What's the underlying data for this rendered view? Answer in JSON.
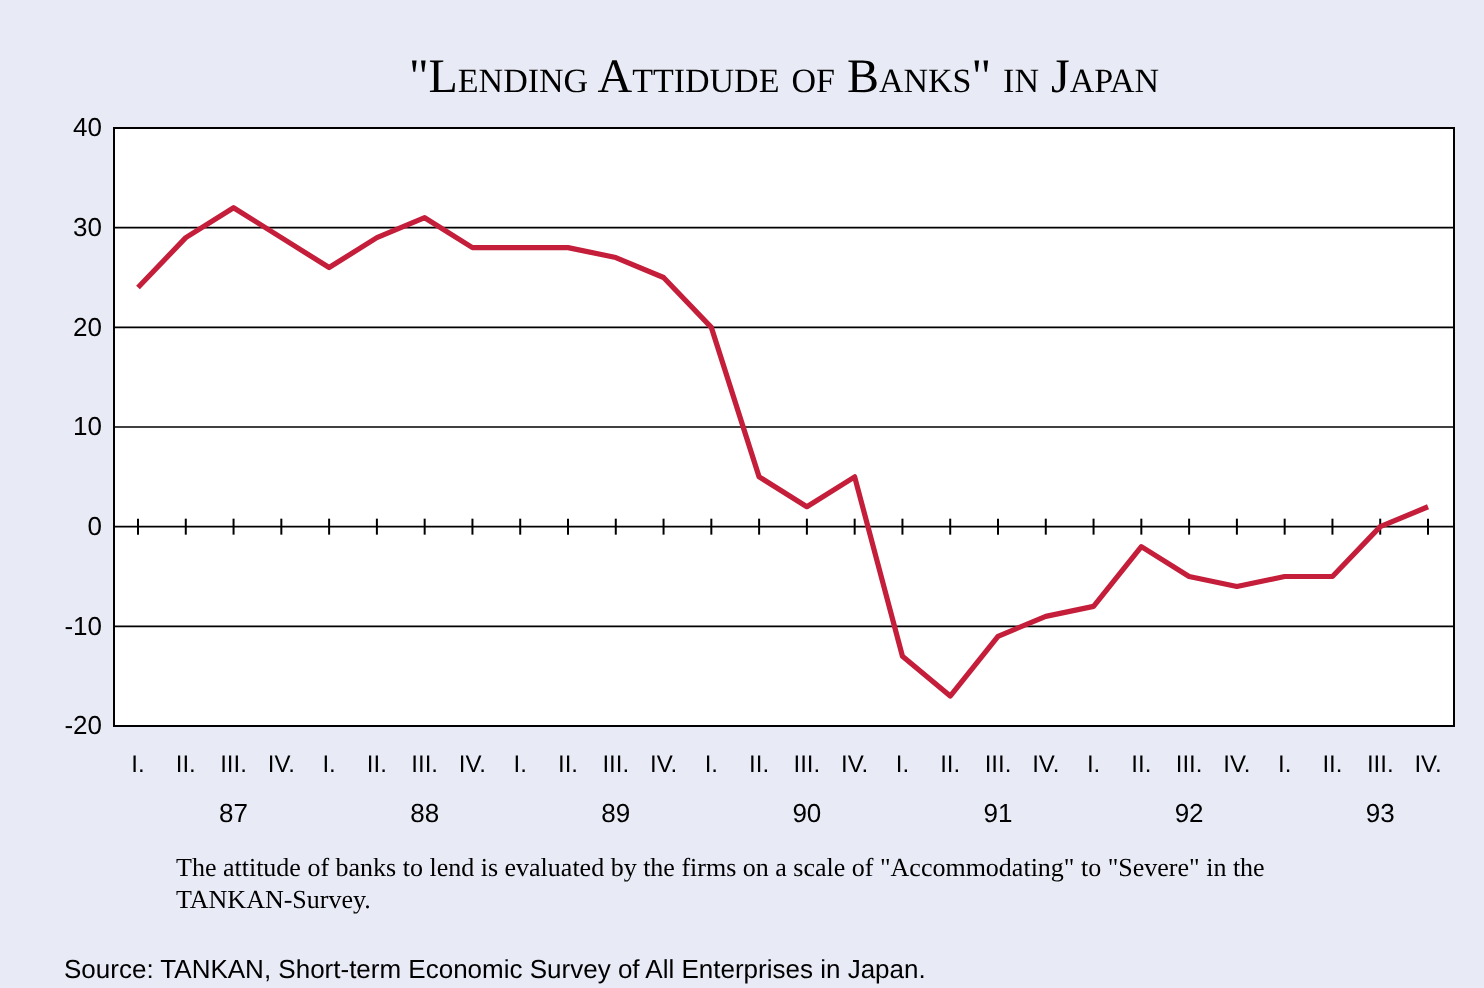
{
  "chart_data": {
    "type": "line",
    "title": "\"Lending Attidude of Banks\" in Japan",
    "categories": [
      "I.",
      "II.",
      "III.",
      "IV.",
      "I.",
      "II.",
      "III.",
      "IV.",
      "I.",
      "II.",
      "III.",
      "IV.",
      "I.",
      "II.",
      "III.",
      "IV.",
      "I.",
      "II.",
      "III.",
      "IV.",
      "I.",
      "II.",
      "III.",
      "IV.",
      "I.",
      "II.",
      "III.",
      "IV."
    ],
    "series": [
      {
        "color": "#c41e3a",
        "values": [
          24,
          29,
          32,
          29,
          26,
          29,
          31,
          28,
          28,
          28,
          27,
          25,
          20,
          5,
          2,
          5,
          -13,
          -17,
          -11,
          -9,
          -8,
          -2,
          -5,
          -6,
          -5,
          -5,
          0,
          2
        ]
      }
    ],
    "ylim": [
      -20,
      40
    ],
    "yticks": [
      -20,
      -10,
      0,
      10,
      20,
      30,
      40
    ],
    "grid": "y",
    "marker": "none",
    "line_style": "solid",
    "annotations": [
      "87",
      "88",
      "89",
      "90",
      "91",
      "92",
      "93",
      "The attitude of banks to lend is evaluated by the firms on a scale of \"Accommodating\" to \"Severe\" in the TANKAN-Survey.",
      "Source: TANKAN, Short-term Economic Survey of All Enterprises in Japan."
    ]
  }
}
